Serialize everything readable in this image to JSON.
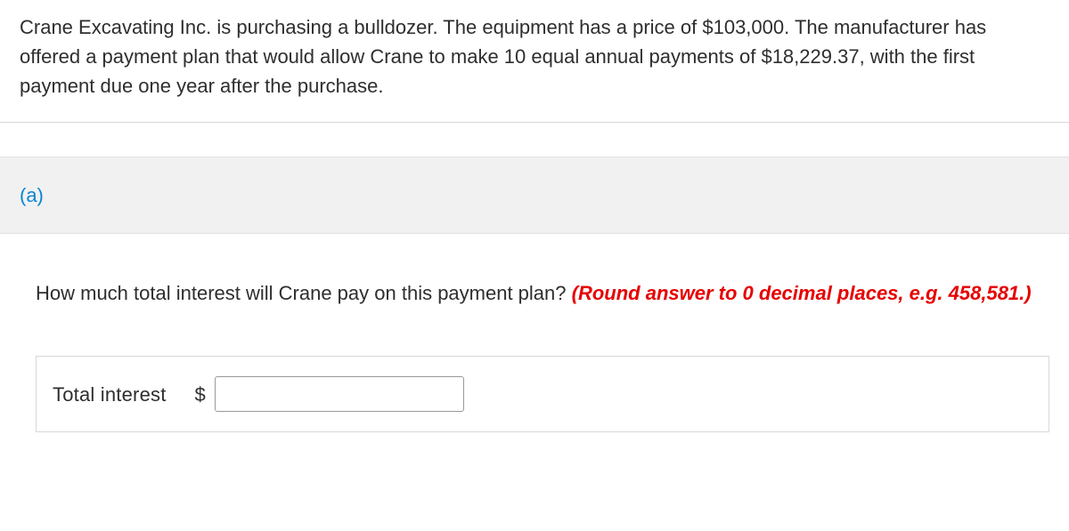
{
  "problem": {
    "statement": "Crane Excavating Inc. is purchasing a bulldozer. The equipment has a price of $103,000. The manufacturer has offered a payment plan that would allow Crane to make 10 equal annual payments of $18,229.37, with the first payment due one year after the purchase."
  },
  "section": {
    "label": "(a)"
  },
  "question": {
    "prompt": "How much total interest will Crane pay on this payment plan? ",
    "hint": "(Round answer to 0 decimal places, e.g. 458,581.)"
  },
  "answer": {
    "label": "Total interest",
    "currency_symbol": "$",
    "input_value": ""
  },
  "style": {
    "link_color": "#0a85d1",
    "hint_color": "#e60000",
    "border_color": "#d8d8d8",
    "section_bg": "#f1f1f1"
  }
}
